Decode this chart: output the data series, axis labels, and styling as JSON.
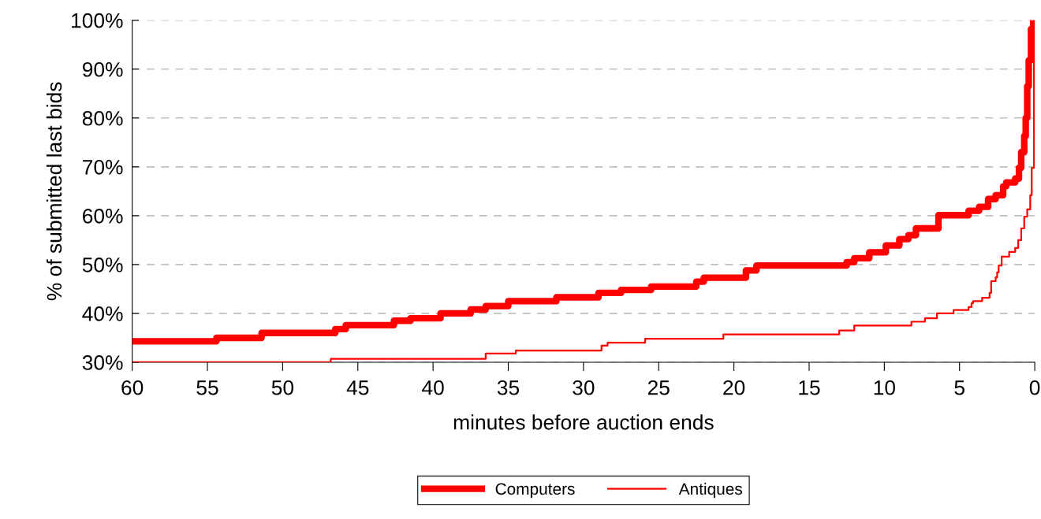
{
  "chart_data": {
    "type": "step",
    "xlabel": "minutes before auction ends",
    "ylabel": "% of submitted last bids",
    "xlim": [
      60,
      0
    ],
    "xticks": [
      60,
      55,
      50,
      45,
      40,
      35,
      30,
      25,
      20,
      15,
      10,
      5,
      0
    ],
    "ylim": [
      30,
      100
    ],
    "yticks": [
      {
        "value": 30,
        "label": "30%"
      },
      {
        "value": 40,
        "label": "40%"
      },
      {
        "value": 50,
        "label": "50%"
      },
      {
        "value": 60,
        "label": "60%"
      },
      {
        "value": 70,
        "label": "70%"
      },
      {
        "value": 80,
        "label": "80%"
      },
      {
        "value": 90,
        "label": "90%"
      },
      {
        "value": 100,
        "label": "100%"
      }
    ],
    "grid": "y",
    "legend": "bottom",
    "marker": "none",
    "line_style": "solid",
    "series": [
      {
        "name": "Computers",
        "color": "#ff0000",
        "x": [
          60,
          54.4,
          51.4,
          46.5,
          45.8,
          42.6,
          41.5,
          39.5,
          37.5,
          36.5,
          35,
          31.8,
          29,
          27.5,
          25.5,
          22.5,
          22,
          19.2,
          18.5,
          12.5,
          12,
          11,
          9.9,
          9.0,
          8.4,
          7.9,
          6.4,
          4.4,
          3.7,
          3.1,
          2.6,
          2.1,
          1.9,
          1.3,
          1.05,
          0.9,
          0.7,
          0.6,
          0.5,
          0.4,
          0.25,
          0.1
        ],
        "values": [
          34.3,
          35,
          36,
          36.8,
          37.6,
          38.5,
          39,
          40,
          40.8,
          41.5,
          42.5,
          43.3,
          44.2,
          44.8,
          45.5,
          46.5,
          47.3,
          48.8,
          49.8,
          50.5,
          51.3,
          52.5,
          53.9,
          55.2,
          56,
          57.4,
          60.1,
          61,
          61.8,
          63.4,
          64.2,
          66,
          66.8,
          67.6,
          69.8,
          73,
          76.3,
          80,
          86.5,
          91.8,
          98.2,
          100
        ]
      },
      {
        "name": "Antiques",
        "color": "#ff0000",
        "x": [
          60,
          46.8,
          36.5,
          34.5,
          28.8,
          28.4,
          25.9,
          20.7,
          13.0,
          12.0,
          8.2,
          7.3,
          6.5,
          5.4,
          4.4,
          4.2,
          4.1,
          3.5,
          3.0,
          2.9,
          2.6,
          2.5,
          2.4,
          2.2,
          1.7,
          1.3,
          1.1,
          0.9,
          0.7,
          0.5,
          0.3,
          0.2,
          0.05
        ],
        "values": [
          30,
          30.7,
          31.8,
          32.4,
          33.4,
          34,
          34.8,
          35.7,
          36.5,
          37.5,
          38.3,
          39,
          40,
          40.7,
          41.3,
          42.1,
          42.5,
          43.2,
          44.2,
          46.6,
          47.4,
          48.4,
          49.8,
          51.6,
          52.6,
          53.4,
          55,
          57.4,
          59.8,
          61.3,
          64.2,
          69.8,
          100
        ]
      }
    ]
  }
}
